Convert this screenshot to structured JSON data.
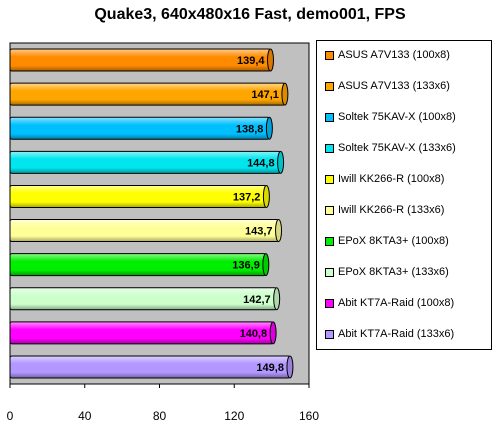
{
  "chart_data": {
    "type": "bar",
    "orientation": "horizontal",
    "title": "Quake3, 640x480x16 Fast, demo001, FPS",
    "categories": [
      "ASUS A7V133 (100x8)",
      "ASUS A7V133 (133x6)",
      "Soltek 75KAV-X (100x8)",
      "Soltek 75KAV-X (133x6)",
      "Iwill KK266-R (100x8)",
      "Iwill KK266-R (133x6)",
      "EPoX 8KTA3+ (100x8)",
      "EPoX 8KTA3+ (133x6)",
      "Abit KT7A-Raid (100x8)",
      "Abit KT7A-Raid (133x6)"
    ],
    "values": [
      139.4,
      147.1,
      138.8,
      144.8,
      137.2,
      143.7,
      136.9,
      142.7,
      140.8,
      149.8
    ],
    "value_labels": [
      "139,4",
      "147,1",
      "138,8",
      "144,8",
      "137,2",
      "143,7",
      "136,9",
      "142,7",
      "140,8",
      "149,8"
    ],
    "colors": [
      "#ff8c00",
      "#ffa500",
      "#00bfff",
      "#00e5ee",
      "#ffff00",
      "#ffff99",
      "#00ee00",
      "#ccffcc",
      "#ff00ff",
      "#b399ff"
    ],
    "xlim": [
      0,
      160
    ],
    "xticks": [
      "0",
      "40",
      "80",
      "120",
      "160"
    ],
    "grid": false,
    "legend_position": "right",
    "plot_background": "#c0c0c0"
  }
}
